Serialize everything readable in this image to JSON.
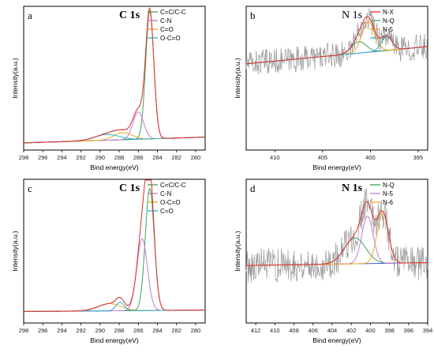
{
  "colors": {
    "raw": "#9a9a9a",
    "envelope": "#e53030",
    "baseline": "#3a5fcd",
    "green": "#3aa35b",
    "violet": "#c07ad8",
    "orange": "#f5a623",
    "cyan": "#2bb7c9"
  },
  "chart_data": [
    {
      "id": "a",
      "type": "line",
      "letter": "a",
      "title": "C 1s",
      "title_bold": true,
      "xlabel": "Bind energy(eV)",
      "ylabel": "Intensity(a.u.)",
      "xlim": [
        298,
        279
      ],
      "ylim": [
        0,
        1
      ],
      "xticks": [
        298,
        296,
        294,
        292,
        290,
        288,
        286,
        284,
        282,
        280
      ],
      "raw_noise": 0.004,
      "legend": [
        {
          "label": "C=C/C-C",
          "color": "green"
        },
        {
          "label": "C-N",
          "color": "violet"
        },
        {
          "label": "C=O",
          "color": "orange"
        },
        {
          "label": "O-C=O",
          "color": "cyan"
        }
      ],
      "baseline": [
        0.05,
        0.09
      ],
      "peaks": [
        {
          "name": "C=C/C-C",
          "color": "green",
          "center": 284.8,
          "fwhm": 1.0,
          "height": 0.89
        },
        {
          "name": "C-N",
          "color": "violet",
          "center": 286.0,
          "fwhm": 1.3,
          "height": 0.19
        },
        {
          "name": "C=O",
          "color": "orange",
          "center": 287.6,
          "fwhm": 2.2,
          "height": 0.05
        },
        {
          "name": "O-C=O",
          "color": "cyan",
          "center": 289.3,
          "fwhm": 3.0,
          "height": 0.04
        }
      ]
    },
    {
      "id": "b",
      "type": "line",
      "letter": "b",
      "title": "N 1s",
      "title_bold": false,
      "xlabel": "Bind energy(eV)",
      "ylabel": "Intensity(a.u.)",
      "xlim": [
        413,
        394
      ],
      "ylim": [
        0,
        1
      ],
      "xticks": [
        410,
        405,
        400,
        395
      ],
      "raw_noise": 0.09,
      "legend": [
        {
          "label": "N-X",
          "color": "envelope"
        },
        {
          "label": "N-Q",
          "color": "green"
        },
        {
          "label": "N-5",
          "color": "orange"
        },
        {
          "label": "N-6",
          "color": "cyan"
        }
      ],
      "baseline": [
        0.6,
        0.72
      ],
      "peaks": [
        {
          "name": "N-Q",
          "color": "green",
          "center": 401.2,
          "fwhm": 1.8,
          "height": 0.08
        },
        {
          "name": "N-5",
          "color": "orange",
          "center": 400.2,
          "fwhm": 1.6,
          "height": 0.21
        },
        {
          "name": "N-6",
          "color": "cyan",
          "center": 398.3,
          "fwhm": 1.3,
          "height": 0.1
        }
      ]
    },
    {
      "id": "c",
      "type": "line",
      "letter": "c",
      "title": "C 1s",
      "title_bold": true,
      "xlabel": "Bind energy(eV)",
      "ylabel": "Intensity(a.u.)",
      "xlim": [
        298,
        279
      ],
      "ylim": [
        0,
        1
      ],
      "xticks": [
        298,
        296,
        294,
        292,
        290,
        288,
        286,
        284,
        282,
        280
      ],
      "raw_noise": 0.004,
      "legend": [
        {
          "label": "C=C/C-C",
          "color": "green"
        },
        {
          "label": "C-N",
          "color": "violet"
        },
        {
          "label": "O-C=O",
          "color": "orange"
        },
        {
          "label": "C=O",
          "color": "cyan"
        }
      ],
      "baseline": [
        0.08,
        0.09
      ],
      "peaks": [
        {
          "name": "C=C/C-C",
          "color": "green",
          "center": 284.8,
          "fwhm": 1.1,
          "height": 0.85
        },
        {
          "name": "C-N",
          "color": "violet",
          "center": 285.6,
          "fwhm": 1.3,
          "height": 0.5
        },
        {
          "name": "O-C=O",
          "color": "orange",
          "center": 289.0,
          "fwhm": 2.8,
          "height": 0.05
        },
        {
          "name": "C=O",
          "color": "cyan",
          "center": 287.9,
          "fwhm": 1.0,
          "height": 0.06
        }
      ]
    },
    {
      "id": "d",
      "type": "line",
      "letter": "d",
      "title": "N 1s",
      "title_bold": true,
      "xlabel": "Bind energy(eV)",
      "ylabel": "Intensity(a.u.)",
      "xlim": [
        413,
        394
      ],
      "ylim": [
        0,
        1
      ],
      "xticks": [
        412,
        410,
        408,
        406,
        404,
        402,
        400,
        398,
        396,
        394
      ],
      "raw_noise": 0.12,
      "legend": [
        {
          "label": "N-Q",
          "color": "green"
        },
        {
          "label": "N-5",
          "color": "violet"
        },
        {
          "label": "N-6",
          "color": "orange"
        }
      ],
      "baseline": [
        0.4,
        0.42
      ],
      "peaks": [
        {
          "name": "N-Q",
          "color": "green",
          "center": 401.6,
          "fwhm": 2.6,
          "height": 0.18
        },
        {
          "name": "N-5",
          "color": "violet",
          "center": 400.3,
          "fwhm": 1.4,
          "height": 0.33
        },
        {
          "name": "N-6",
          "color": "orange",
          "center": 398.7,
          "fwhm": 1.4,
          "height": 0.35
        }
      ]
    }
  ]
}
